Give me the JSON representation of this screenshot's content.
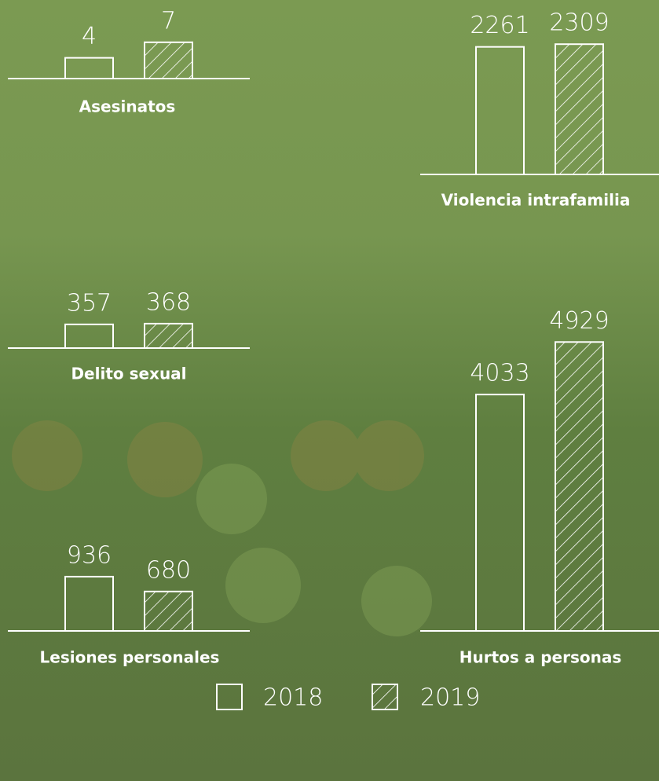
{
  "chart_data": [
    {
      "type": "bar",
      "title": "Asesinatos",
      "values": [
        4,
        7
      ]
    },
    {
      "type": "bar",
      "title": "Violencia intrafamilia",
      "values": [
        2261,
        2309
      ]
    },
    {
      "type": "bar",
      "title": "Delito sexual",
      "values": [
        357,
        368
      ]
    },
    {
      "type": "bar",
      "title": "Hurtos a personas",
      "values": [
        4033,
        4929
      ]
    },
    {
      "type": "bar",
      "title": "Lesiones personales",
      "values": [
        936,
        680
      ]
    }
  ],
  "legend": [
    "2018",
    "2019"
  ]
}
